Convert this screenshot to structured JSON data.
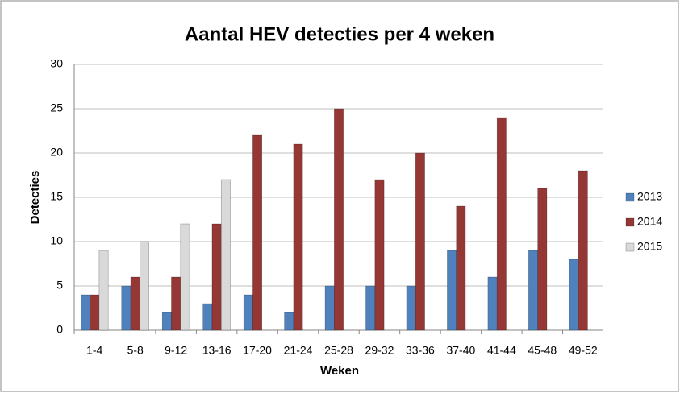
{
  "chart_data": {
    "type": "bar",
    "title": "Aantal HEV detecties per 4 weken",
    "x_label": "Weken",
    "y_label": "Detecties",
    "categories": [
      "1-4",
      "5-8",
      "9-12",
      "13-16",
      "17-20",
      "21-24",
      "25-28",
      "29-32",
      "33-36",
      "37-40",
      "41-44",
      "45-48",
      "49-52"
    ],
    "series": [
      {
        "name": "2013",
        "color": "#4f81bd",
        "values": [
          4,
          5,
          2,
          3,
          4,
          2,
          5,
          5,
          5,
          9,
          6,
          9,
          8
        ]
      },
      {
        "name": "2014",
        "color": "#953735",
        "values": [
          4,
          6,
          6,
          12,
          22,
          21,
          25,
          17,
          20,
          14,
          24,
          16,
          18
        ]
      },
      {
        "name": "2015",
        "color": "#d9d9d9",
        "values": [
          9,
          10,
          12,
          17,
          null,
          null,
          null,
          null,
          null,
          null,
          null,
          null,
          null
        ]
      }
    ],
    "ylim": [
      0,
      30
    ],
    "yticks": [
      0,
      5,
      10,
      15,
      20,
      25,
      30
    ],
    "grid": true,
    "legend": "right"
  }
}
